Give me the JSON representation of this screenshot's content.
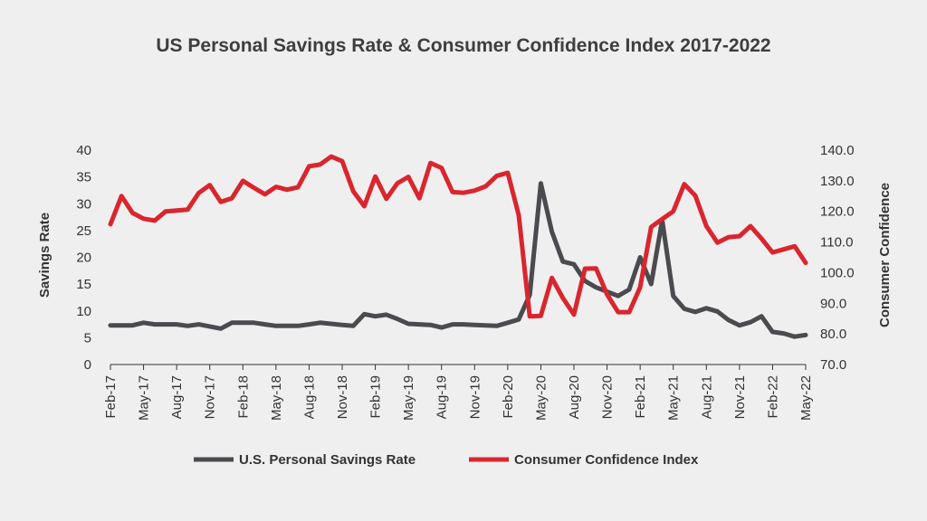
{
  "chart_data": {
    "type": "line",
    "title": "US Personal Savings Rate & Consumer Confidence Index 2017-2022",
    "xlabel": "",
    "y_left_label": "Savings Rate",
    "y_right_label": "Consumer Confidence",
    "y_left_ticks": [
      "0",
      "5",
      "10",
      "15",
      "20",
      "25",
      "30",
      "35",
      "40"
    ],
    "y_right_ticks": [
      "70.0",
      "80.0",
      "90.0",
      "100.0",
      "110.0",
      "120.0",
      "130.0",
      "140.0"
    ],
    "y_left_lim": [
      0,
      40
    ],
    "y_right_lim": [
      70,
      140
    ],
    "x_ticks": [
      "Feb-17",
      "May-17",
      "Aug-17",
      "Nov-17",
      "Feb-18",
      "May-18",
      "Aug-18",
      "Nov-18",
      "Feb-19",
      "May-19",
      "Aug-19",
      "Nov-19",
      "Feb-20",
      "May-20",
      "Aug-20",
      "Nov-20",
      "Feb-21",
      "May-21",
      "Aug-21",
      "Nov-21",
      "Feb-22",
      "May-22"
    ],
    "legend_position": "bottom-center",
    "grid": false,
    "series": [
      {
        "name": "U.S. Personal Savings Rate",
        "axis": "left",
        "color": "#4a4a4f",
        "x": [
          "2017-02",
          "2017-03",
          "2017-04",
          "2017-05",
          "2017-06",
          "2017-07",
          "2017-08",
          "2017-09",
          "2017-10",
          "2017-11",
          "2017-12",
          "2018-01",
          "2018-02",
          "2018-03",
          "2018-04",
          "2018-05",
          "2018-06",
          "2018-07",
          "2018-08",
          "2018-09",
          "2018-10",
          "2018-11",
          "2018-12",
          "2019-01",
          "2019-02",
          "2019-03",
          "2019-04",
          "2019-05",
          "2019-06",
          "2019-07",
          "2019-08",
          "2019-09",
          "2019-10",
          "2019-11",
          "2019-12",
          "2020-01",
          "2020-02",
          "2020-03",
          "2020-04",
          "2020-05",
          "2020-06",
          "2020-07",
          "2020-08",
          "2020-09",
          "2020-10",
          "2020-11",
          "2020-12",
          "2021-01",
          "2021-02",
          "2021-03",
          "2021-04",
          "2021-05",
          "2021-06",
          "2021-07",
          "2021-08",
          "2021-09",
          "2021-10",
          "2021-11",
          "2021-12",
          "2022-01",
          "2022-02",
          "2022-03",
          "2022-04",
          "2022-05"
        ],
        "values": [
          7.3,
          7.3,
          7.3,
          7.8,
          7.5,
          7.5,
          7.5,
          7.2,
          7.5,
          7.1,
          6.7,
          7.8,
          7.8,
          7.8,
          7.5,
          7.2,
          7.2,
          7.2,
          7.5,
          7.8,
          7.6,
          7.4,
          7.2,
          9.4,
          9.0,
          9.3,
          8.5,
          7.6,
          7.5,
          7.4,
          6.9,
          7.5,
          7.5,
          7.4,
          7.3,
          7.2,
          7.8,
          8.4,
          13.0,
          33.8,
          24.8,
          19.2,
          18.7,
          15.6,
          14.4,
          13.6,
          12.8,
          14.0,
          20.0,
          15.0,
          26.9,
          12.8,
          10.4,
          9.8,
          10.5,
          9.9,
          8.3,
          7.3,
          7.9,
          9.0,
          6.1,
          5.8,
          5.2,
          5.5
        ]
      },
      {
        "name": "Consumer Confidence Index",
        "axis": "right",
        "color": "#d9262e",
        "x": [
          "2017-02",
          "2017-03",
          "2017-04",
          "2017-05",
          "2017-06",
          "2017-07",
          "2017-08",
          "2017-09",
          "2017-10",
          "2017-11",
          "2017-12",
          "2018-01",
          "2018-02",
          "2018-03",
          "2018-04",
          "2018-05",
          "2018-06",
          "2018-07",
          "2018-08",
          "2018-09",
          "2018-10",
          "2018-11",
          "2018-12",
          "2019-01",
          "2019-02",
          "2019-03",
          "2019-04",
          "2019-05",
          "2019-06",
          "2019-07",
          "2019-08",
          "2019-09",
          "2019-10",
          "2019-11",
          "2019-12",
          "2020-01",
          "2020-02",
          "2020-03",
          "2020-04",
          "2020-05",
          "2020-06",
          "2020-07",
          "2020-08",
          "2020-09",
          "2020-10",
          "2020-11",
          "2020-12",
          "2021-01",
          "2021-02",
          "2021-03",
          "2021-04",
          "2021-05",
          "2021-06",
          "2021-07",
          "2021-08",
          "2021-09",
          "2021-10",
          "2021-11",
          "2021-12",
          "2022-01",
          "2022-02",
          "2022-03",
          "2022-04",
          "2022-05"
        ],
        "values": [
          115.8,
          125.0,
          119.5,
          117.6,
          117.0,
          120.0,
          120.3,
          120.6,
          126.0,
          128.6,
          123.1,
          124.3,
          130.0,
          127.7,
          125.6,
          128.0,
          127.1,
          127.9,
          134.7,
          135.3,
          137.9,
          136.4,
          126.6,
          121.7,
          131.4,
          124.1,
          129.2,
          131.3,
          124.3,
          135.8,
          134.2,
          126.3,
          126.1,
          126.8,
          128.2,
          131.6,
          132.6,
          118.8,
          85.7,
          85.9,
          98.3,
          91.7,
          86.3,
          101.3,
          101.4,
          92.9,
          87.1,
          87.1,
          95.2,
          114.9,
          117.5,
          120.0,
          128.9,
          125.1,
          115.2,
          109.8,
          111.6,
          111.9,
          115.2,
          111.1,
          106.6,
          107.6,
          108.6,
          103.2
        ]
      }
    ]
  }
}
